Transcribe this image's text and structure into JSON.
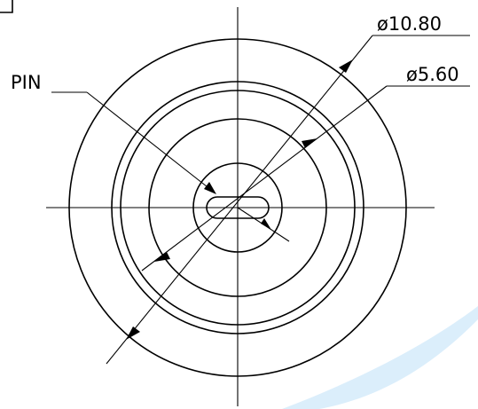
{
  "labels": {
    "pin": "PIN",
    "dim_outer": "ø10.80",
    "dim_inner": "ø5.60"
  },
  "colors": {
    "line": "#000000",
    "background": "#ffffff",
    "watermark": "#dbeefb"
  }
}
